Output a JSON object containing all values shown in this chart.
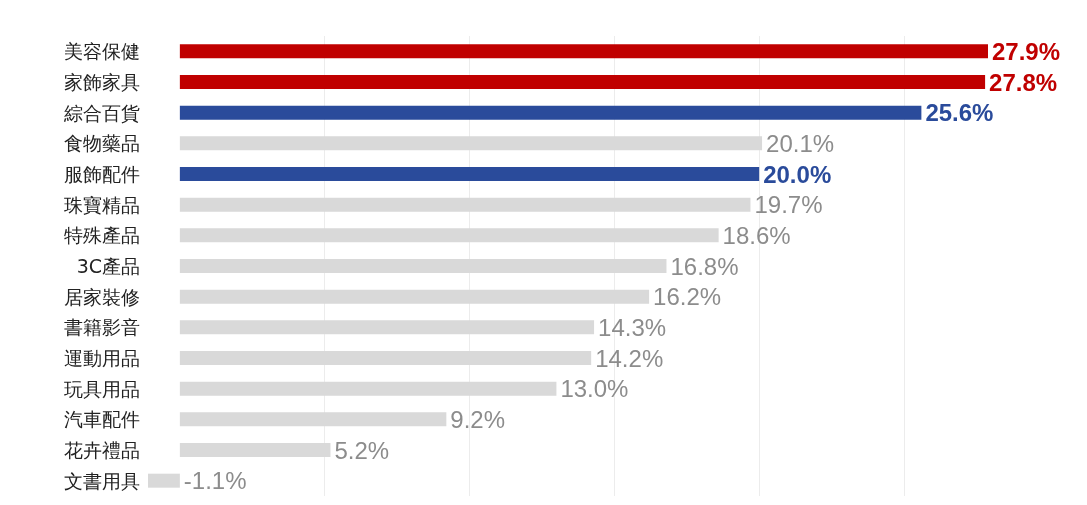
{
  "chart_data": {
    "type": "bar",
    "orientation": "horizontal",
    "categories": [
      "美容保健",
      "家飾家具",
      "綜合百貨",
      "食物藥品",
      "服飾配件",
      "珠寶精品",
      "特殊產品",
      "3C產品",
      "居家裝修",
      "書籍影音",
      "運動用品",
      "玩具用品",
      "汽車配件",
      "花卉禮品",
      "文書用具"
    ],
    "values": [
      27.9,
      27.8,
      25.6,
      20.1,
      20.0,
      19.7,
      18.6,
      16.8,
      16.2,
      14.3,
      14.2,
      13.0,
      9.2,
      5.2,
      -1.1
    ],
    "value_labels": [
      "27.9%",
      "27.8%",
      "25.6%",
      "20.1%",
      "20.0%",
      "19.7%",
      "18.6%",
      "16.8%",
      "16.2%",
      "14.3%",
      "14.2%",
      "13.0%",
      "9.2%",
      "5.2%",
      "-1.1%"
    ],
    "colors": [
      "#c00000",
      "#c00000",
      "#2a4b9b",
      "#d9d9d9",
      "#2a4b9b",
      "#d9d9d9",
      "#d9d9d9",
      "#d9d9d9",
      "#d9d9d9",
      "#d9d9d9",
      "#d9d9d9",
      "#d9d9d9",
      "#d9d9d9",
      "#d9d9d9",
      "#d9d9d9"
    ],
    "xticks": [
      {
        "value": 5,
        "label": null
      },
      {
        "value": 10,
        "label": null
      },
      {
        "value": 15,
        "label": null
      },
      {
        "value": 20,
        "label": null
      },
      {
        "value": 25,
        "label": null
      }
    ],
    "grid": "x",
    "tick_labels": "y"
  }
}
